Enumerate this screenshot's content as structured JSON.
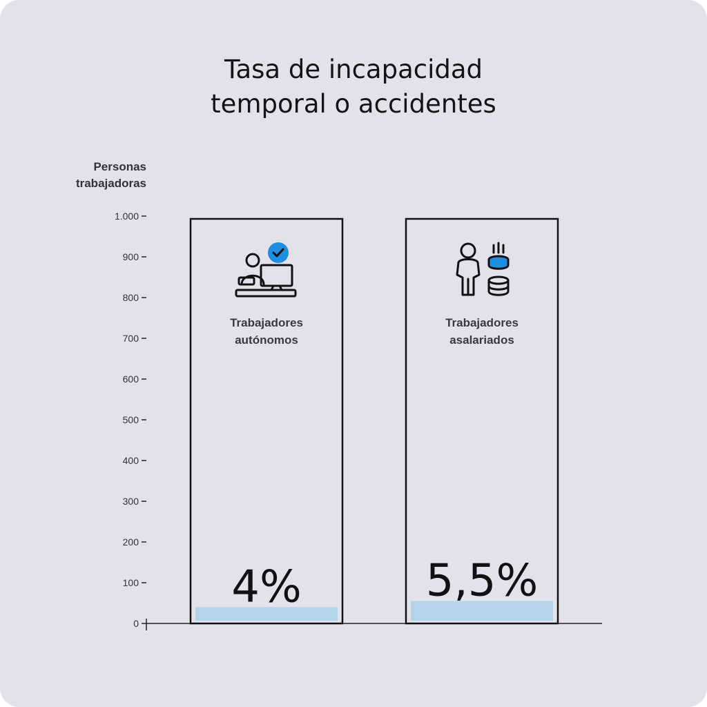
{
  "title_lines": [
    "Tasa de incapacidad",
    "temporal o accidentes"
  ],
  "chart_data": {
    "type": "bar",
    "title": "Tasa de incapacidad temporal o accidentes",
    "ylabel_lines": [
      "Personas",
      "trabajadoras"
    ],
    "ylim": [
      0,
      1000
    ],
    "y_ticks": [
      0,
      100,
      200,
      300,
      400,
      500,
      600,
      700,
      800,
      900,
      1000
    ],
    "y_tick_labels": [
      "0",
      "100",
      "200",
      "300",
      "400",
      "500",
      "600",
      "700",
      "800",
      "900",
      "1.000"
    ],
    "grid": false,
    "categories": [
      {
        "label_lines": [
          "Trabajadores",
          "autónomos"
        ],
        "icon": "person-at-computer-with-check-icon"
      },
      {
        "label_lines": [
          "Trabajadores",
          "asalariados"
        ],
        "icon": "person-with-coins-icon"
      }
    ],
    "values": [
      40,
      55
    ],
    "data_labels": [
      "4%",
      "5,5%"
    ],
    "colors": {
      "bar_fill": "#b3d4e6",
      "frame_stroke": "#111111",
      "accent": "#1e8fe1",
      "background": "#e3e1ea"
    }
  }
}
